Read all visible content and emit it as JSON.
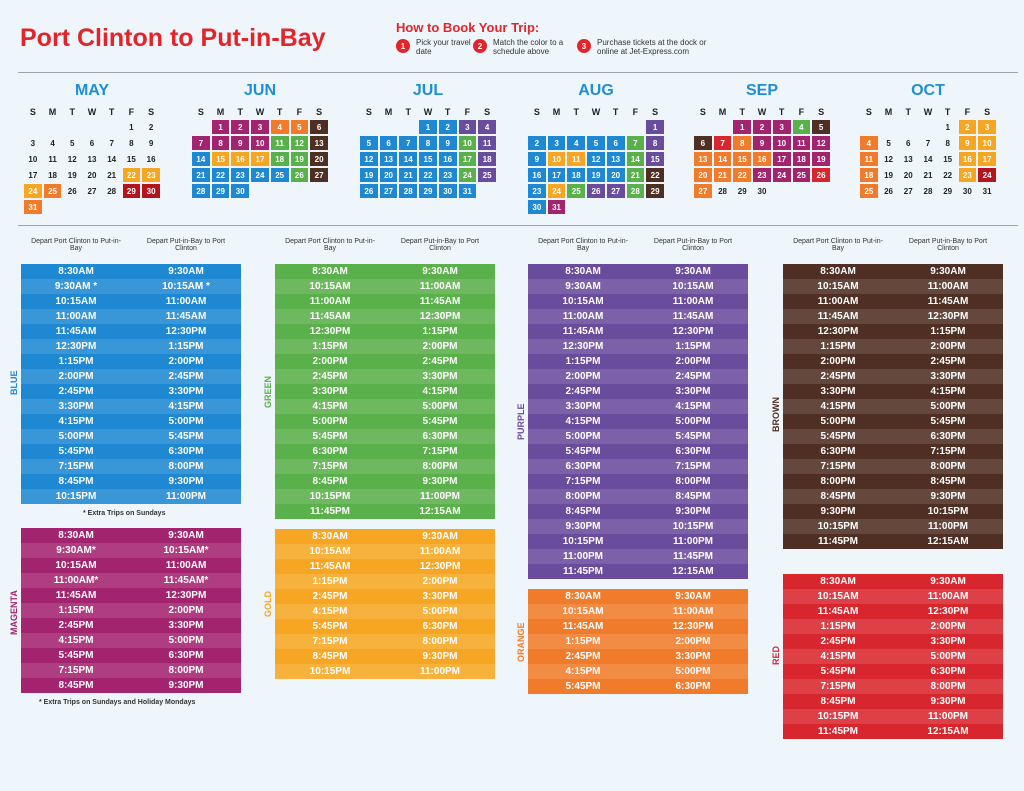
{
  "title": "Port Clinton to Put-in-Bay",
  "howto": {
    "heading": "How to Book Your Trip:",
    "steps": [
      {
        "num": "1",
        "text": "Pick your travel date"
      },
      {
        "num": "2",
        "text": "Match the color to a schedule above"
      },
      {
        "num": "3",
        "text": "Purchase tickets at the dock or online at Jet-Express.com"
      }
    ]
  },
  "colors": {
    "blue": "#1e88d2",
    "magenta": "#a3246e",
    "green": "#5ab04a",
    "gold": "#f6a623",
    "purple": "#6a4c9c",
    "orange": "#f07b2a",
    "brown": "#4f2f24",
    "red": "#d8262e",
    "red_dark": "#b4151c",
    "accent": "#e3242b"
  },
  "calendar": {
    "weekdays": [
      "S",
      "M",
      "T",
      "W",
      "T",
      "F",
      "S"
    ],
    "months": [
      {
        "name": "MAY",
        "start": 5,
        "days": 31,
        "colors": {
          "22": "gold",
          "23": "gold",
          "24": "gold",
          "25": "orange",
          "29": "red_dark",
          "30": "red_dark",
          "31": "orange"
        }
      },
      {
        "name": "JUN",
        "start": 1,
        "days": 30,
        "colors": {
          "1": "magenta",
          "2": "magenta",
          "3": "magenta",
          "4": "orange",
          "5": "orange",
          "6": "brown",
          "7": "magenta",
          "8": "magenta",
          "9": "magenta",
          "10": "magenta",
          "11": "green",
          "12": "green",
          "13": "brown",
          "14": "blue",
          "15": "gold",
          "16": "gold",
          "17": "gold",
          "18": "green",
          "19": "green",
          "20": "brown",
          "21": "blue",
          "22": "blue",
          "23": "blue",
          "24": "blue",
          "25": "blue",
          "26": "green",
          "27": "brown",
          "28": "blue",
          "29": "blue",
          "30": "blue"
        }
      },
      {
        "name": "JUL",
        "start": 3,
        "days": 31,
        "colors": {
          "1": "blue",
          "2": "blue",
          "3": "purple",
          "4": "purple",
          "5": "blue",
          "6": "blue",
          "7": "blue",
          "8": "blue",
          "9": "blue",
          "10": "green",
          "11": "purple",
          "12": "blue",
          "13": "blue",
          "14": "blue",
          "15": "blue",
          "16": "blue",
          "17": "green",
          "18": "purple",
          "19": "blue",
          "20": "blue",
          "21": "blue",
          "22": "blue",
          "23": "blue",
          "24": "green",
          "25": "purple",
          "26": "blue",
          "27": "blue",
          "28": "blue",
          "29": "blue",
          "30": "blue",
          "31": "blue"
        }
      },
      {
        "name": "AUG",
        "start": 6,
        "days": 31,
        "colors": {
          "1": "purple",
          "2": "blue",
          "3": "blue",
          "4": "blue",
          "5": "blue",
          "6": "blue",
          "7": "green",
          "8": "purple",
          "9": "blue",
          "10": "gold",
          "11": "gold",
          "12": "blue",
          "13": "blue",
          "14": "green",
          "15": "purple",
          "16": "blue",
          "17": "blue",
          "18": "blue",
          "19": "blue",
          "20": "blue",
          "21": "green",
          "22": "brown",
          "23": "blue",
          "24": "gold",
          "25": "green",
          "26": "purple",
          "27": "purple",
          "28": "green",
          "29": "brown",
          "30": "blue",
          "31": "magenta"
        }
      },
      {
        "name": "SEP",
        "start": 2,
        "days": 30,
        "colors": {
          "1": "magenta",
          "2": "magenta",
          "3": "magenta",
          "4": "green",
          "5": "brown",
          "6": "brown",
          "7": "red",
          "8": "orange",
          "9": "magenta",
          "10": "magenta",
          "11": "magenta",
          "12": "magenta",
          "13": "orange",
          "14": "orange",
          "15": "orange",
          "16": "orange",
          "17": "magenta",
          "18": "magenta",
          "19": "magenta",
          "20": "orange",
          "21": "orange",
          "22": "orange",
          "23": "magenta",
          "24": "magenta",
          "25": "magenta",
          "26": "red",
          "27": "orange"
        }
      },
      {
        "name": "OCT",
        "start": 4,
        "days": 31,
        "colors": {
          "2": "gold",
          "3": "gold",
          "4": "orange",
          "9": "gold",
          "10": "gold",
          "11": "orange",
          "16": "gold",
          "17": "gold",
          "18": "orange",
          "23": "gold",
          "24": "red_dark",
          "25": "orange"
        }
      }
    ]
  },
  "col_headers": {
    "left": "Depart Port Clinton to Put-in-Bay",
    "right": "Depart Put-in-Bay to Port Clinton"
  },
  "schedules": [
    {
      "id": "blue",
      "label": "BLUE",
      "note": "* Extra Trips on Sundays",
      "rows": [
        [
          "8:30am",
          "9:30am"
        ],
        [
          "9:30am *",
          "10:15am *"
        ],
        [
          "10:15am",
          "11:00am"
        ],
        [
          "11:00am",
          "11:45am"
        ],
        [
          "11:45am",
          "12:30pm"
        ],
        [
          "12:30pm",
          "1:15pm"
        ],
        [
          "1:15pm",
          "2:00pm"
        ],
        [
          "2:00pm",
          "2:45pm"
        ],
        [
          "2:45pm",
          "3:30pm"
        ],
        [
          "3:30pm",
          "4:15pm"
        ],
        [
          "4:15pm",
          "5:00pm"
        ],
        [
          "5:00pm",
          "5:45pm"
        ],
        [
          "5:45pm",
          "6:30pm"
        ],
        [
          "7:15pm",
          "8:00pm"
        ],
        [
          "8:45pm",
          "9:30pm"
        ],
        [
          "10:15pm",
          "11:00pm"
        ]
      ]
    },
    {
      "id": "magenta",
      "label": "MAGENTA",
      "note": "* Extra Trips on Sundays and Holiday Mondays",
      "rows": [
        [
          "8:30am",
          "9:30am"
        ],
        [
          "9:30am*",
          "10:15am*"
        ],
        [
          "10:15am",
          "11:00am"
        ],
        [
          "11:00am*",
          "11:45am*"
        ],
        [
          "11:45am",
          "12:30pm"
        ],
        [
          "1:15pm",
          "2:00pm"
        ],
        [
          "2:45pm",
          "3:30pm"
        ],
        [
          "4:15pm",
          "5:00pm"
        ],
        [
          "5:45pm",
          "6:30pm"
        ],
        [
          "7:15pm",
          "8:00pm"
        ],
        [
          "8:45pm",
          "9:30pm"
        ]
      ]
    },
    {
      "id": "green",
      "label": "GREEN",
      "note": "",
      "rows": [
        [
          "8:30am",
          "9:30am"
        ],
        [
          "10:15am",
          "11:00am"
        ],
        [
          "11:00am",
          "11:45am"
        ],
        [
          "11:45am",
          "12:30pm"
        ],
        [
          "12:30pm",
          "1:15pm"
        ],
        [
          "1:15pm",
          "2:00pm"
        ],
        [
          "2:00pm",
          "2:45pm"
        ],
        [
          "2:45pm",
          "3:30pm"
        ],
        [
          "3:30pm",
          "4:15pm"
        ],
        [
          "4:15pm",
          "5:00pm"
        ],
        [
          "5:00pm",
          "5:45pm"
        ],
        [
          "5:45pm",
          "6:30pm"
        ],
        [
          "6:30pm",
          "7:15pm"
        ],
        [
          "7:15pm",
          "8:00pm"
        ],
        [
          "8:45pm",
          "9:30pm"
        ],
        [
          "10:15pm",
          "11:00pm"
        ],
        [
          "11:45pm",
          "12:15am"
        ]
      ]
    },
    {
      "id": "gold",
      "label": "GOLD",
      "note": "",
      "rows": [
        [
          "8:30am",
          "9:30am"
        ],
        [
          "10:15am",
          "11:00am"
        ],
        [
          "11:45am",
          "12:30pm"
        ],
        [
          "1:15pm",
          "2:00pm"
        ],
        [
          "2:45pm",
          "3:30pm"
        ],
        [
          "4:15pm",
          "5:00pm"
        ],
        [
          "5:45pm",
          "6:30pm"
        ],
        [
          "7:15pm",
          "8:00pm"
        ],
        [
          "8:45pm",
          "9:30pm"
        ],
        [
          "10:15pm",
          "11:00pm"
        ]
      ]
    },
    {
      "id": "purple",
      "label": "PURPLE",
      "note": "",
      "rows": [
        [
          "8:30am",
          "9:30am"
        ],
        [
          "9:30am",
          "10:15am"
        ],
        [
          "10:15am",
          "11:00am"
        ],
        [
          "11:00am",
          "11:45am"
        ],
        [
          "11:45am",
          "12:30pm"
        ],
        [
          "12:30pm",
          "1:15pm"
        ],
        [
          "1:15pm",
          "2:00pm"
        ],
        [
          "2:00pm",
          "2:45pm"
        ],
        [
          "2:45pm",
          "3:30pm"
        ],
        [
          "3:30pm",
          "4:15pm"
        ],
        [
          "4:15pm",
          "5:00pm"
        ],
        [
          "5:00pm",
          "5:45pm"
        ],
        [
          "5:45pm",
          "6:30pm"
        ],
        [
          "6:30pm",
          "7:15pm"
        ],
        [
          "7:15pm",
          "8:00pm"
        ],
        [
          "8:00pm",
          "8:45pm"
        ],
        [
          "8:45pm",
          "9:30pm"
        ],
        [
          "9:30pm",
          "10:15pm"
        ],
        [
          "10:15pm",
          "11:00pm"
        ],
        [
          "11:00pm",
          "11:45pm"
        ],
        [
          "11:45pm",
          "12:15am"
        ]
      ]
    },
    {
      "id": "orange",
      "label": "ORANGE",
      "note": "",
      "rows": [
        [
          "8:30am",
          "9:30am"
        ],
        [
          "10:15am",
          "11:00am"
        ],
        [
          "11:45am",
          "12:30pm"
        ],
        [
          "1:15pm",
          "2:00pm"
        ],
        [
          "2:45pm",
          "3:30pm"
        ],
        [
          "4:15pm",
          "5:00pm"
        ],
        [
          "5:45pm",
          "6:30pm"
        ]
      ]
    },
    {
      "id": "brown",
      "label": "BROWN",
      "note": "",
      "rows": [
        [
          "8:30am",
          "9:30am"
        ],
        [
          "10:15am",
          "11:00am"
        ],
        [
          "11:00am",
          "11:45am"
        ],
        [
          "11:45am",
          "12:30pm"
        ],
        [
          "12:30pm",
          "1:15pm"
        ],
        [
          "1:15pm",
          "2:00pm"
        ],
        [
          "2:00pm",
          "2:45pm"
        ],
        [
          "2:45pm",
          "3:30pm"
        ],
        [
          "3:30pm",
          "4:15pm"
        ],
        [
          "4:15pm",
          "5:00pm"
        ],
        [
          "5:00pm",
          "5:45pm"
        ],
        [
          "5:45pm",
          "6:30pm"
        ],
        [
          "6:30pm",
          "7:15pm"
        ],
        [
          "7:15pm",
          "8:00pm"
        ],
        [
          "8:00pm",
          "8:45pm"
        ],
        [
          "8:45pm",
          "9:30pm"
        ],
        [
          "9:30pm",
          "10:15pm"
        ],
        [
          "10:15pm",
          "11:00pm"
        ],
        [
          "11:45pm",
          "12:15am"
        ]
      ]
    },
    {
      "id": "red",
      "label": "RED",
      "note": "",
      "rows": [
        [
          "8:30am",
          "9:30am"
        ],
        [
          "10:15am",
          "11:00am"
        ],
        [
          "11:45am",
          "12:30pm"
        ],
        [
          "1:15pm",
          "2:00pm"
        ],
        [
          "2:45pm",
          "3:30pm"
        ],
        [
          "4:15pm",
          "5:00pm"
        ],
        [
          "5:45pm",
          "6:30pm"
        ],
        [
          "7:15pm",
          "8:00pm"
        ],
        [
          "8:45pm",
          "9:30pm"
        ],
        [
          "10:15pm",
          "11:00pm"
        ],
        [
          "11:45pm",
          "12:15am"
        ]
      ]
    }
  ]
}
